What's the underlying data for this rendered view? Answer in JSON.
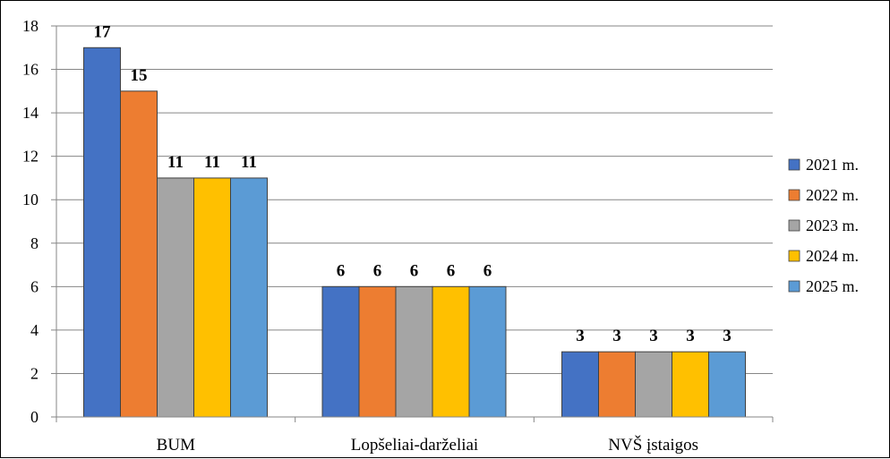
{
  "chart_data": {
    "type": "bar",
    "categories": [
      "BUM",
      "Lopšeliai-darželiai",
      "NVŠ įstaigos"
    ],
    "series": [
      {
        "name": "2021 m.",
        "color": "#4472C4",
        "values": [
          17,
          6,
          3
        ]
      },
      {
        "name": "2022 m.",
        "color": "#ED7D31",
        "values": [
          15,
          6,
          3
        ]
      },
      {
        "name": "2023 m.",
        "color": "#A5A5A5",
        "values": [
          11,
          6,
          3
        ]
      },
      {
        "name": "2024 m.",
        "color": "#FFC000",
        "values": [
          11,
          6,
          3
        ]
      },
      {
        "name": "2025 m.",
        "color": "#5B9BD5",
        "values": [
          11,
          6,
          3
        ]
      }
    ],
    "ylim": [
      0,
      18
    ],
    "yticks": [
      0,
      2,
      4,
      6,
      8,
      10,
      12,
      14,
      16,
      18
    ],
    "grid": true,
    "legend_position": "right",
    "data_labels": true
  }
}
